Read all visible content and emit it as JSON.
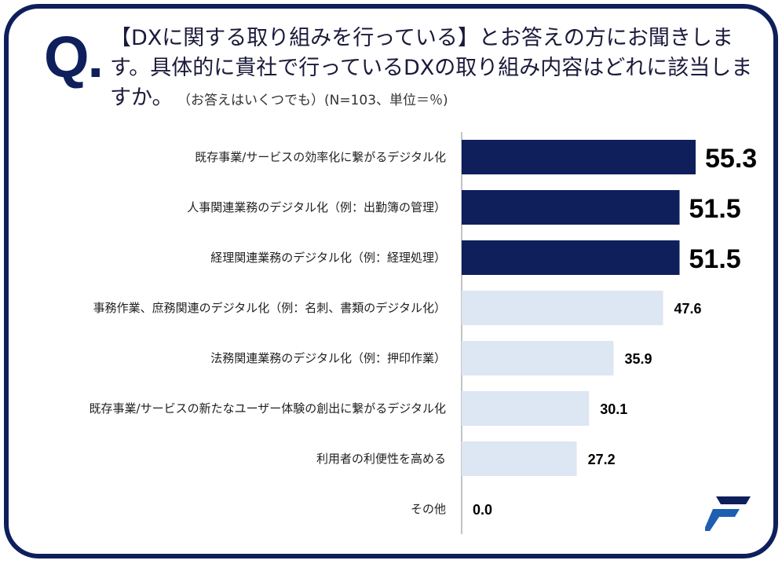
{
  "question": {
    "mark": "Q.",
    "text": "【DXに関する取り組みを行っている】とお答えの方にお聞きします。具体的に貴社で行っているDXの取り組み内容はどれに該当しますか。",
    "note": "（お答えはいくつでも）(N=103、単位＝％)"
  },
  "colors": {
    "frame": "#0f1f5c",
    "highlight_bar": "#0f1f5c",
    "normal_bar": "#dde6f3"
  },
  "chart_data": {
    "type": "bar",
    "orientation": "horizontal",
    "categories": [
      "既存事業/サービスの効率化に繋がるデジタル化",
      "人事関連業務のデジタル化（例：出勤簿の管理）",
      "経理関連業務のデジタル化（例：経理処理）",
      "事務作業、庶務関連のデジタル化（例：名刺、書類のデジタル化）",
      "法務関連業務のデジタル化（例：押印作業）",
      "既存事業/サービスの新たなユーザー体験の創出に繋がるデジタル化",
      "利用者の利便性を高める",
      "その他"
    ],
    "values": [
      55.3,
      51.5,
      51.5,
      47.6,
      35.9,
      30.1,
      27.2,
      0.0
    ],
    "value_labels": [
      "55.3",
      "51.5",
      "51.5",
      "47.6",
      "35.9",
      "30.1",
      "27.2",
      "0.0"
    ],
    "highlighted": [
      true,
      true,
      true,
      false,
      false,
      false,
      false,
      false
    ],
    "xlim": [
      0,
      60
    ],
    "title": "",
    "xlabel": "",
    "ylabel": "",
    "grid": false,
    "legend": "none"
  },
  "logo": {
    "icon": "brand-f-logo-icon"
  }
}
